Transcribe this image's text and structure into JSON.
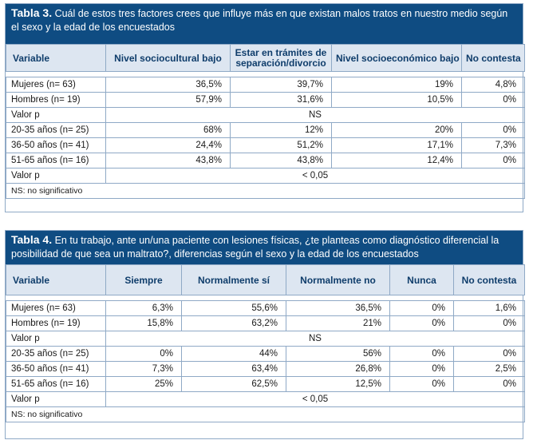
{
  "table3": {
    "title_num": "Tabla 3.",
    "title_text": "Cuál de estos tres factores crees que influye más en que existan malos tratos en nuestro medio según el sexo y la edad de los encuestados",
    "headers": [
      "Variable",
      "Nivel sociocultural bajo",
      "Estar en trámites de separación/divorcio",
      "Nivel socioeconómico bajo",
      "No contesta"
    ],
    "rows": [
      [
        "Mujeres (n= 63)",
        "36,5%",
        "39,7%",
        "19%",
        "4,8%"
      ],
      [
        "Hombres (n= 19)",
        "57,9%",
        "31,6%",
        "10,5%",
        "0%"
      ]
    ],
    "pvalue1": {
      "label": "Valor p",
      "value": "NS"
    },
    "age_rows": [
      [
        "20-35 años (n= 25)",
        "68%",
        "12%",
        "20%",
        "0%"
      ],
      [
        "36-50 años (n= 41)",
        "24,4%",
        "51,2%",
        "17,1%",
        "7,3%"
      ],
      [
        "51-65 años (n= 16)",
        "43,8%",
        "43,8%",
        "12,4%",
        "0%"
      ]
    ],
    "pvalue2": {
      "label": "Valor p",
      "value": "< 0,05"
    },
    "note": "NS: no significativo"
  },
  "table4": {
    "title_num": "Tabla 4.",
    "title_text": "En tu trabajo, ante un/una paciente con lesiones físicas, ¿te planteas como diagnóstico diferencial la posibilidad de que sea un maltrato?, diferencias según el sexo y la edad de los encuestados",
    "headers": [
      "Variable",
      "Siempre",
      "Normalmente sí",
      "Normalmente no",
      "Nunca",
      "No contesta"
    ],
    "rows": [
      [
        "Mujeres (n= 63)",
        "6,3%",
        "55,6%",
        "36,5%",
        "0%",
        "1,6%"
      ],
      [
        "Hombres (n= 19)",
        "15,8%",
        "63,2%",
        "21%",
        "0%",
        "0%"
      ]
    ],
    "pvalue1": {
      "label": "Valor p",
      "value": "NS"
    },
    "age_rows": [
      [
        "20-35 años (n= 25)",
        "0%",
        "44%",
        "56%",
        "0%",
        "0%"
      ],
      [
        "36-50 años (n= 41)",
        "7,3%",
        "63,4%",
        "26,8%",
        "0%",
        "2,5%"
      ],
      [
        "51-65 años (n= 16)",
        "25%",
        "62,5%",
        "12,5%",
        "0%",
        "0%"
      ]
    ],
    "pvalue2": {
      "label": "Valor p",
      "value": "< 0,05"
    },
    "note": "NS: no significativo"
  }
}
